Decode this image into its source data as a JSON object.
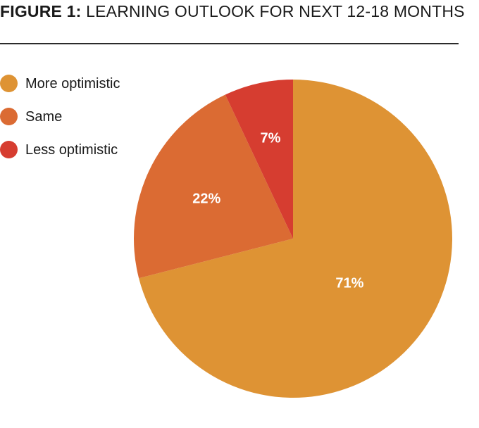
{
  "header": {
    "title_prefix": "FIGURE 1:",
    "title_text": "LEARNING OUTLOOK FOR NEXT 12-18 MONTHS"
  },
  "colors": {
    "more_optimistic": "#DE9334",
    "same": "#DB6B33",
    "less_optimistic": "#D63D30",
    "slice_label": "#FFFFFF"
  },
  "legend": {
    "items": [
      {
        "label": "More optimistic"
      },
      {
        "label": "Same"
      },
      {
        "label": "Less optimistic"
      }
    ]
  },
  "chart_data": {
    "type": "pie",
    "title": "LEARNING OUTLOOK FOR NEXT 12-18 MONTHS",
    "categories": [
      "More optimistic",
      "Same",
      "Less optimistic"
    ],
    "values": [
      71,
      22,
      7
    ],
    "labels": [
      "71%",
      "22%",
      "7%"
    ],
    "unit": "%",
    "start": "12 o'clock, clockwise",
    "legend_position": "top-left"
  }
}
